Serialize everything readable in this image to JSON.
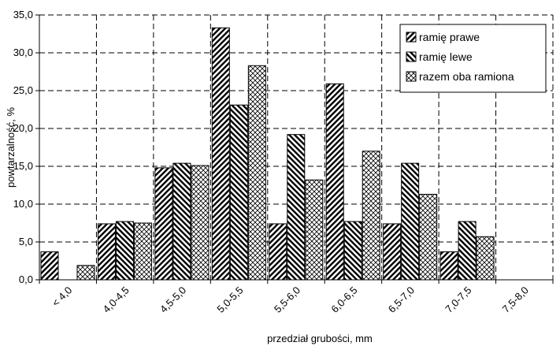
{
  "chart_data": {
    "type": "bar",
    "xlabel": "przedział grubości, mm",
    "ylabel": "powtarzalność, %",
    "categories": [
      "< 4,0",
      "4,0-4,5",
      "4,5-5,0",
      "5,0-5,5",
      "5,5-6,0",
      "6,0-6,5",
      "6,5-7,0",
      "7,0-7,5",
      "7,5-8,0"
    ],
    "series": [
      {
        "name": "ramię prawe",
        "values": [
          3.7,
          7.4,
          14.8,
          33.3,
          7.4,
          25.9,
          7.4,
          3.7,
          0
        ],
        "pattern": "diag-right"
      },
      {
        "name": "ramię lewe",
        "values": [
          0,
          7.7,
          15.4,
          23.1,
          19.2,
          7.7,
          15.4,
          7.7,
          0
        ],
        "pattern": "diag-left"
      },
      {
        "name": "razem oba ramiona",
        "values": [
          1.9,
          7.5,
          15.1,
          28.3,
          13.2,
          17.0,
          11.3,
          5.7,
          0
        ],
        "pattern": "cross"
      }
    ],
    "ylim": [
      0,
      35
    ],
    "yticks": [
      "0,0",
      "5,0",
      "10,0",
      "15,0",
      "20,0",
      "25,0",
      "30,0",
      "35,0"
    ],
    "grid": true,
    "grid_style": "dashed",
    "legend_position": "top-right",
    "colors": {
      "stroke": "#000000",
      "background": "#ffffff"
    }
  }
}
